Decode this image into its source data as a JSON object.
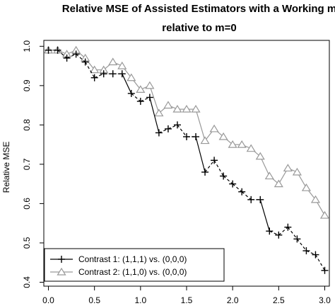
{
  "chart_data": {
    "type": "line",
    "title": "Relative MSE of Assisted Estimators with a Working m",
    "subtitle": "relative to m=0",
    "xlabel": "",
    "ylabel": "Relative MSE",
    "xlim": [
      -0.05,
      3.05
    ],
    "ylim": [
      0.39,
      1.015
    ],
    "x_ticks": [
      "0.0",
      "0.5",
      "1.0",
      "1.5",
      "2.0",
      "2.5",
      "3.0"
    ],
    "x_tick_values": [
      0,
      0.5,
      1,
      1.5,
      2,
      2.5,
      3
    ],
    "y_ticks": [
      "0.4",
      "0.5",
      "0.6",
      "0.7",
      "0.8",
      "0.9",
      "1.0"
    ],
    "y_tick_values": [
      0.4,
      0.5,
      0.6,
      0.7,
      0.8,
      0.9,
      1.0
    ],
    "grid": false,
    "legend_position": "bottom-left",
    "x": [
      0,
      0.1,
      0.2,
      0.3,
      0.4,
      0.5,
      0.6,
      0.7,
      0.8,
      0.9,
      1.0,
      1.1,
      1.2,
      1.3,
      1.4,
      1.5,
      1.6,
      1.7,
      1.8,
      1.9,
      2.0,
      2.1,
      2.2,
      2.3,
      2.4,
      2.5,
      2.6,
      2.7,
      2.8,
      2.9,
      3.0
    ],
    "series": [
      {
        "name": "Contrast 1: (1,1,1) vs. (0,0,0)",
        "marker": "plus",
        "color": "#000000",
        "values": [
          0.99,
          0.99,
          0.97,
          0.98,
          0.96,
          0.92,
          0.93,
          0.93,
          0.93,
          0.88,
          0.86,
          0.87,
          0.78,
          0.79,
          0.8,
          0.77,
          0.77,
          0.68,
          0.71,
          0.67,
          0.65,
          0.63,
          0.61,
          0.61,
          0.53,
          0.52,
          0.54,
          0.51,
          0.48,
          0.47,
          0.43
        ],
        "line_styles": [
          "dashed",
          "dashed",
          "dashed",
          "dashed",
          "dashed",
          "dashed",
          "dashed",
          "dashed",
          "solid",
          "dashed",
          "dashed",
          "solid",
          "dashed",
          "dashed",
          "dashed",
          "dashed",
          "solid",
          "dashed",
          "dashed",
          "dashed",
          "dashed",
          "dashed",
          "dashed",
          "solid",
          "dashed",
          "dashed",
          "dashed",
          "dashed",
          "dashed",
          "dashed"
        ]
      },
      {
        "name": "Contrast 2: (1,1,0) vs. (0,0,0)",
        "marker": "triangle",
        "color": "#999999",
        "values": [
          0.99,
          0.99,
          0.98,
          0.99,
          0.97,
          0.94,
          0.94,
          0.96,
          0.95,
          0.92,
          0.89,
          0.9,
          0.83,
          0.85,
          0.84,
          0.84,
          0.84,
          0.76,
          0.79,
          0.77,
          0.75,
          0.75,
          0.74,
          0.72,
          0.67,
          0.65,
          0.69,
          0.68,
          0.64,
          0.61,
          0.57
        ],
        "line_styles": [
          "solid"
        ]
      }
    ]
  }
}
